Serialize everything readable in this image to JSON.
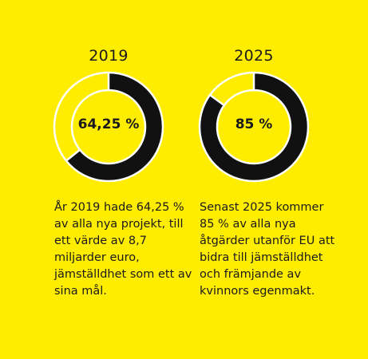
{
  "colors": {
    "background": "#FFED00",
    "filled": "#111111",
    "remainder": "#FFED00",
    "ring_outline": "#FFFFFF"
  },
  "chart_data": [
    {
      "type": "pie",
      "style": "donut",
      "title": "2019",
      "value_label": "64,25 %",
      "values": [
        64.25,
        35.75
      ],
      "categories": [
        "",
        ""
      ],
      "caption": "År 2019 hade 64,25 % av alla nya projekt, till ett värde av 8,7 miljarder euro, jämställdhet som ett av sina mål."
    },
    {
      "type": "pie",
      "style": "donut",
      "title": "2025",
      "value_label": "85 %",
      "values": [
        85,
        15
      ],
      "categories": [
        "",
        ""
      ],
      "caption": "Senast 2025 kommer 85 % av alla nya åtgärder utanför EU att bidra till jämställdhet och främjande av kvinnors egenmakt."
    }
  ]
}
